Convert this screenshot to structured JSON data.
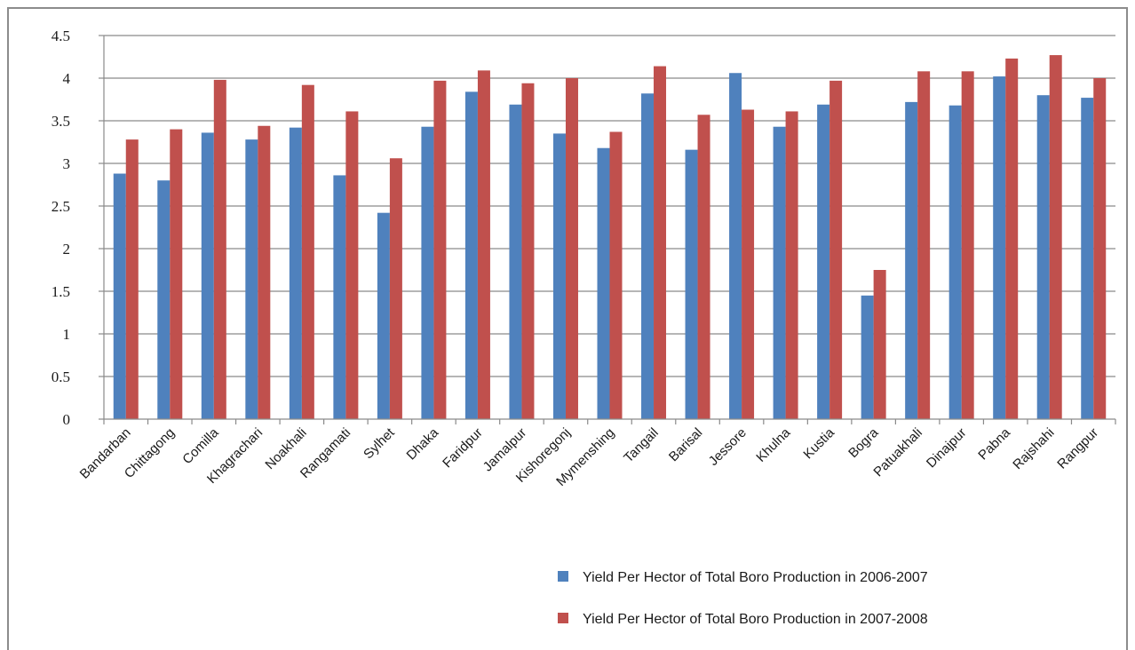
{
  "chart_data": {
    "type": "bar",
    "title": "",
    "xlabel": "",
    "ylabel": "",
    "ylim": [
      0,
      4.5
    ],
    "yticks": [
      "0",
      "0.5",
      "1",
      "1.5",
      "2",
      "2.5",
      "3",
      "3.5",
      "4",
      "4.5"
    ],
    "grid": true,
    "legend_position": "bottom-right",
    "categories": [
      "Bandarban",
      "Chittagong",
      "Comilla",
      "Khagrachari",
      "Noakhali",
      "Rangamati",
      "Sylhet",
      "Dhaka",
      "Faridpur",
      "Jamalpur",
      "Kishoregonj",
      "Mymenshing",
      "Tangail",
      "Barisal",
      "Jessore",
      "Khulna",
      "Kustia",
      "Bogra",
      "Patuakhali",
      "Dinajpur",
      "Pabna",
      "Rajshahi",
      "Rangpur"
    ],
    "series": [
      {
        "name": "Yield Per Hector of Total Boro Production in 2006-2007",
        "color": "#4f81bd",
        "values": [
          2.88,
          2.8,
          3.36,
          3.28,
          3.42,
          2.86,
          2.42,
          3.43,
          3.84,
          3.69,
          3.35,
          3.18,
          3.82,
          3.16,
          4.06,
          3.43,
          3.69,
          1.45,
          3.72,
          3.68,
          4.02,
          3.8,
          3.77
        ]
      },
      {
        "name": "Yield Per Hector of Total Boro Production in 2007-2008",
        "color": "#c0504d",
        "values": [
          3.28,
          3.4,
          3.98,
          3.44,
          3.92,
          3.61,
          3.06,
          3.97,
          4.09,
          3.94,
          4.0,
          3.37,
          4.14,
          3.57,
          3.63,
          3.61,
          3.97,
          1.75,
          4.08,
          4.08,
          4.23,
          4.27,
          4.0
        ]
      }
    ]
  }
}
